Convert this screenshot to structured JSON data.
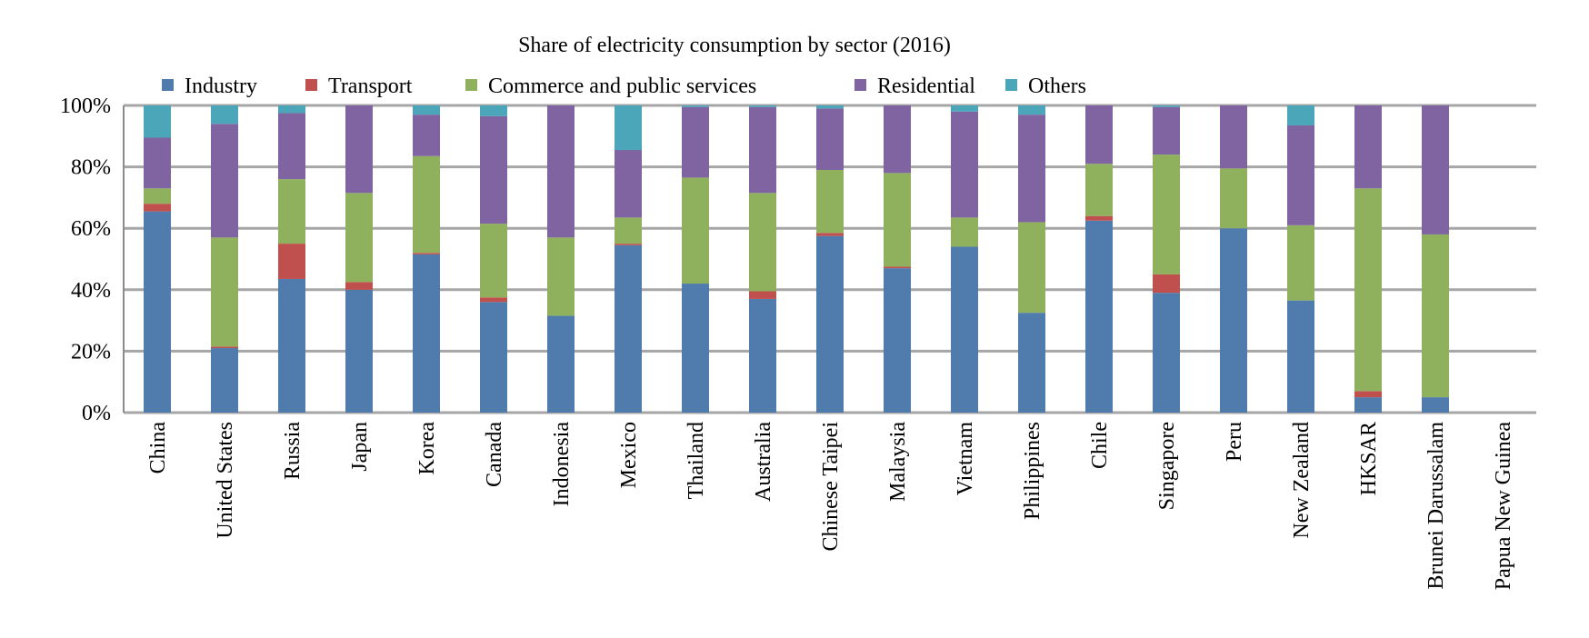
{
  "chart_data": {
    "type": "bar",
    "stacked": true,
    "percent_stacked": true,
    "title": "Share of electricity consumption by sector (2016)",
    "xlabel": "",
    "ylabel": "",
    "ylim": [
      0,
      100
    ],
    "y_ticks": [
      "0%",
      "20%",
      "40%",
      "60%",
      "80%",
      "100%"
    ],
    "grid": true,
    "legend_position": "top",
    "categories": [
      "China",
      "United States",
      "Russia",
      "Japan",
      "Korea",
      "Canada",
      "Indonesia",
      "Mexico",
      "Thailand",
      "Australia",
      "Chinese Taipei",
      "Malaysia",
      "Vietnam",
      "Philippines",
      "Chile",
      "Singapore",
      "Peru",
      "New Zealand",
      "HKSAR",
      "Brunei Darussalam",
      "Papua New Guinea"
    ],
    "series": [
      {
        "name": "Industry",
        "color": "#4f7cad",
        "values": [
          65.5,
          21,
          43.5,
          40,
          51.5,
          36,
          31.5,
          54.5,
          42,
          37,
          57.5,
          47,
          54,
          32.5,
          62.5,
          39,
          60,
          36.5,
          5,
          5,
          0
        ]
      },
      {
        "name": "Transport",
        "color": "#c0504d",
        "values": [
          2.5,
          0.5,
          11.5,
          2.5,
          0.5,
          1.5,
          0,
          0.5,
          0,
          2.5,
          1,
          0.5,
          0,
          0,
          1.5,
          6,
          0,
          0,
          2,
          0,
          0
        ]
      },
      {
        "name": "Commerce and public services",
        "color": "#8fb05d",
        "values": [
          5,
          35.5,
          21,
          29,
          31.5,
          24,
          25.5,
          8.5,
          34.5,
          32,
          20.5,
          30.5,
          9.5,
          29.5,
          17,
          39,
          19.5,
          24.5,
          66,
          53,
          0
        ]
      },
      {
        "name": "Residential",
        "color": "#8064a2",
        "values": [
          16.5,
          37,
          21.5,
          28.5,
          13.5,
          35,
          43,
          22,
          23,
          28,
          20,
          22,
          34.5,
          35,
          19,
          15.5,
          20.5,
          32.5,
          27,
          42,
          0
        ]
      },
      {
        "name": "Others",
        "color": "#4aa6b8",
        "values": [
          10.5,
          6,
          2.5,
          0,
          3,
          3.5,
          0,
          14.5,
          0.5,
          0.5,
          1,
          0,
          2,
          3,
          0,
          0.5,
          0,
          6.5,
          0,
          0,
          0
        ]
      }
    ]
  }
}
